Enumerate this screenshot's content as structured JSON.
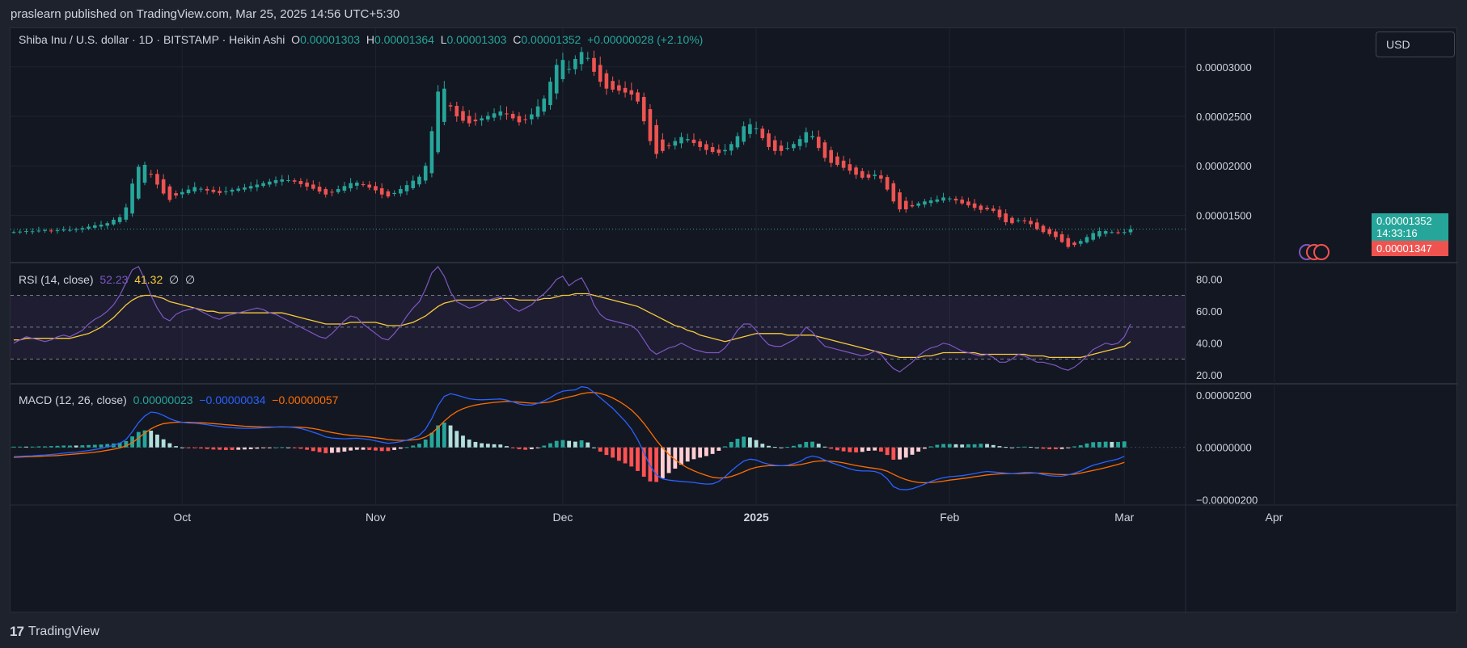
{
  "header": {
    "published_text": "praslearn published on TradingView.com, Mar 25, 2025 14:56 UTC+5:30"
  },
  "legend": {
    "symbol": "Shiba Inu / U.S. dollar · 1D · BITSTAMP · Heikin Ashi",
    "o_label": "O",
    "o_value": "0.00001303",
    "h_label": "H",
    "h_value": "0.00001364",
    "l_label": "L",
    "l_value": "0.00001303",
    "c_label": "C",
    "c_value": "0.00001352",
    "change": "+0.00000028 (+2.10%)"
  },
  "currency": "USD",
  "price_axis": {
    "ticks": [
      "0.00003000",
      "0.00002500",
      "0.00002000",
      "0.00001500"
    ],
    "last_price": "0.00001352",
    "countdown": "14:33:16",
    "low_tag": "0.00001347"
  },
  "rsi": {
    "title": "RSI (14, close)",
    "value_rsi": "52.23",
    "value_ma": "41.32",
    "flag1": "∅",
    "flag2": "∅",
    "ticks": [
      "80.00",
      "60.00",
      "40.00",
      "20.00"
    ]
  },
  "macd": {
    "title": "MACD (12, 26, close)",
    "hist_value": "0.00000023",
    "macd_value": "−0.00000034",
    "signal_value": "−0.00000057",
    "ticks": [
      "0.00000200",
      "0.00000000",
      "−0.00000200"
    ]
  },
  "time_axis": {
    "labels": [
      "Oct",
      "Nov",
      "Dec",
      "2025",
      "Feb",
      "Mar",
      "Apr"
    ]
  },
  "colors": {
    "up": "#26a69a",
    "down": "#ef5350",
    "rsi_line": "#7e57c2",
    "rsi_ma": "#f7cc3b",
    "macd_line": "#2962ff",
    "signal_line": "#ff6d00",
    "hist_up_strong": "#26a69a",
    "hist_up_weak": "#b2dfdb",
    "hist_down_strong": "#ff5252",
    "hist_down_weak": "#ffcdd2"
  },
  "footer": {
    "brand": "TradingView",
    "logo": "17"
  },
  "chart_data": [
    {
      "type": "candlestick",
      "title": "Shiba Inu / U.S. dollar · 1D · BITSTAMP · Heikin Ashi",
      "x_start": "2024-09-04",
      "x_end": "2025-03-25",
      "ylim": [
        1.03e-05,
        3.39e-05
      ],
      "close": [
        1.33e-05,
        1.335e-05,
        1.34e-05,
        1.338e-05,
        1.345e-05,
        1.35e-05,
        1.342e-05,
        1.348e-05,
        1.355e-05,
        1.352e-05,
        1.36e-05,
        1.37e-05,
        1.385e-05,
        1.398e-05,
        1.405e-05,
        1.42e-05,
        1.455e-05,
        1.48e-05,
        1.58e-05,
        1.82e-05,
        1.99e-05,
        2.01e-05,
        1.915e-05,
        1.81e-05,
        1.72e-05,
        1.655e-05,
        1.7e-05,
        1.735e-05,
        1.76e-05,
        1.785e-05,
        1.768e-05,
        1.75e-05,
        1.735e-05,
        1.725e-05,
        1.742e-05,
        1.758e-05,
        1.77e-05,
        1.782e-05,
        1.795e-05,
        1.81e-05,
        1.825e-05,
        1.84e-05,
        1.855e-05,
        1.862e-05,
        1.855e-05,
        1.84e-05,
        1.815e-05,
        1.79e-05,
        1.768e-05,
        1.74e-05,
        1.71e-05,
        1.73e-05,
        1.765e-05,
        1.795e-05,
        1.825e-05,
        1.83e-05,
        1.805e-05,
        1.78e-05,
        1.752e-05,
        1.71e-05,
        1.69e-05,
        1.725e-05,
        1.765e-05,
        1.805e-05,
        1.85e-05,
        1.89e-05,
        2e-05,
        2.35e-05,
        2.75e-05,
        2.78e-05,
        2.6e-05,
        2.5e-05,
        2.455e-05,
        2.43e-05,
        2.45e-05,
        2.48e-05,
        2.505e-05,
        2.53e-05,
        2.55e-05,
        2.52e-05,
        2.48e-05,
        2.44e-05,
        2.47e-05,
        2.52e-05,
        2.6e-05,
        2.68e-05,
        2.85e-05,
        3.02e-05,
        3.07e-05,
        2.98e-05,
        3.08e-05,
        3.15e-05,
        3.09e-05,
        2.95e-05,
        2.85e-05,
        2.78e-05,
        2.77e-05,
        2.76e-05,
        2.74e-05,
        2.72e-05,
        2.65e-05,
        2.45e-05,
        2.25e-05,
        2.12e-05,
        2.15e-05,
        2.2e-05,
        2.25e-05,
        2.29e-05,
        2.27e-05,
        2.23e-05,
        2.19e-05,
        2.16e-05,
        2.14e-05,
        2.13e-05,
        2.16e-05,
        2.22e-05,
        2.3e-05,
        2.4e-05,
        2.42e-05,
        2.38e-05,
        2.28e-05,
        2.19e-05,
        2.15e-05,
        2.15e-05,
        2.18e-05,
        2.22e-05,
        2.27e-05,
        2.34e-05,
        2.3e-05,
        2.18e-05,
        2.08e-05,
        2.03e-05,
        2.01e-05,
        1.98e-05,
        1.95e-05,
        1.91e-05,
        1.88e-05,
        1.88e-05,
        1.91e-05,
        1.87e-05,
        1.76e-05,
        1.64e-05,
        1.56e-05,
        1.56e-05,
        1.59e-05,
        1.62e-05,
        1.64e-05,
        1.65e-05,
        1.66e-05,
        1.68e-05,
        1.67e-05,
        1.65e-05,
        1.62e-05,
        1.6e-05,
        1.575e-05,
        1.555e-05,
        1.56e-05,
        1.545e-05,
        1.48e-05,
        1.43e-05,
        1.42e-05,
        1.45e-05,
        1.44e-05,
        1.41e-05,
        1.36e-05,
        1.33e-05,
        1.31e-05,
        1.28e-05,
        1.23e-05,
        1.18e-05,
        1.2e-05,
        1.24e-05,
        1.28e-05,
        1.32e-05,
        1.34e-05,
        1.34e-05,
        1.33e-05,
        1.325e-05,
        1.33e-05,
        1.36e-05
      ]
    },
    {
      "type": "line",
      "title": "RSI (14, close)",
      "ylim": [
        15,
        90
      ],
      "series": [
        {
          "name": "RSI",
          "values": [
            40,
            42,
            44,
            43,
            42,
            41,
            42,
            44,
            45,
            44,
            46,
            48,
            52,
            55,
            57,
            60,
            64,
            70,
            78,
            86,
            88,
            80,
            70,
            62,
            56,
            54,
            58,
            60,
            61,
            62,
            60,
            58,
            56,
            55,
            57,
            58,
            59,
            60,
            61,
            62,
            61,
            59,
            58,
            56,
            54,
            52,
            50,
            48,
            46,
            44,
            43,
            46,
            50,
            54,
            57,
            56,
            52,
            49,
            46,
            43,
            42,
            46,
            51,
            57,
            62,
            66,
            74,
            84,
            88,
            82,
            72,
            66,
            64,
            62,
            63,
            65,
            67,
            68,
            69,
            66,
            62,
            60,
            62,
            64,
            68,
            71,
            75,
            80,
            82,
            76,
            79,
            81,
            74,
            64,
            58,
            55,
            54,
            53,
            52,
            51,
            48,
            42,
            36,
            33,
            35,
            37,
            38,
            40,
            38,
            36,
            35,
            34,
            34,
            34,
            37,
            42,
            48,
            52,
            52,
            48,
            43,
            39,
            38,
            38,
            40,
            42,
            45,
            50,
            47,
            42,
            38,
            37,
            36,
            35,
            34,
            33,
            32,
            33,
            35,
            33,
            28,
            24,
            22,
            25,
            28,
            32,
            35,
            37,
            38,
            40,
            39,
            37,
            35,
            34,
            33,
            32,
            33,
            31,
            28,
            28,
            30,
            33,
            32,
            30,
            28,
            28,
            27,
            26,
            24,
            23,
            25,
            28,
            32,
            36,
            38,
            40,
            39,
            40,
            44,
            52
          ]
        },
        {
          "name": "RSI MA",
          "values": [
            42,
            42,
            43,
            43,
            43,
            43,
            43,
            43,
            43,
            43,
            44,
            45,
            46,
            48,
            50,
            53,
            56,
            60,
            64,
            67,
            69,
            70,
            70,
            69,
            68,
            66,
            65,
            64,
            63,
            62,
            61,
            60,
            60,
            59,
            59,
            59,
            59,
            59,
            59,
            59,
            59,
            59,
            59,
            59,
            58,
            57,
            56,
            55,
            54,
            53,
            52,
            52,
            52,
            52,
            53,
            53,
            53,
            53,
            53,
            52,
            51,
            51,
            51,
            52,
            53,
            55,
            57,
            60,
            63,
            65,
            66,
            67,
            67,
            67,
            67,
            67,
            67,
            67,
            68,
            68,
            68,
            67,
            67,
            67,
            67,
            68,
            68,
            69,
            70,
            70,
            71,
            71,
            71,
            70,
            69,
            68,
            67,
            66,
            65,
            64,
            63,
            61,
            59,
            57,
            55,
            53,
            51,
            50,
            48,
            47,
            45,
            44,
            43,
            42,
            41,
            42,
            43,
            44,
            45,
            46,
            46,
            46,
            46,
            46,
            45,
            45,
            45,
            45,
            45,
            44,
            43,
            42,
            41,
            40,
            39,
            38,
            37,
            36,
            35,
            34,
            33,
            32,
            31,
            31,
            31,
            31,
            32,
            32,
            33,
            34,
            34,
            34,
            34,
            34,
            34,
            33,
            33,
            33,
            33,
            33,
            33,
            33,
            33,
            32,
            32,
            32,
            31,
            31,
            31,
            31,
            31,
            31,
            32,
            33,
            34,
            35,
            36,
            37,
            38,
            41
          ]
        }
      ]
    },
    {
      "type": "line",
      "title": "MACD (12, 26, close)",
      "ylim": [
        -2.2e-06,
        2.4e-06
      ],
      "series": [
        {
          "name": "MACD",
          "values": [
            -3.5e-07,
            -3.4e-07,
            -3.3e-07,
            -3.2e-07,
            -3e-07,
            -2.9e-07,
            -2.7e-07,
            -2.5e-07,
            -2.2e-07,
            -2e-07,
            -1.8e-07,
            -1.5e-07,
            -1.2e-07,
            -8e-08,
            -4e-08,
            2e-08,
            8e-08,
            1.6e-07,
            3e-07,
            6e-07,
            9.5e-07,
            1.2e-06,
            1.35e-06,
            1.32e-06,
            1.22e-06,
            1.1e-06,
            1.01e-06,
            9.6e-07,
            9.3e-07,
            9.2e-07,
            9e-07,
            8.7e-07,
            8.3e-07,
            8e-07,
            7.7e-07,
            7.5e-07,
            7.4e-07,
            7.3e-07,
            7.3e-07,
            7.4e-07,
            7.5e-07,
            7.6e-07,
            7.8e-07,
            7.9e-07,
            7.8e-07,
            7.6e-07,
            7.2e-07,
            6.6e-07,
            5.8e-07,
            5e-07,
            4e-07,
            3.6e-07,
            3.4e-07,
            3.3e-07,
            3.4e-07,
            3.5e-07,
            3.3e-07,
            3e-07,
            2.5e-07,
            2e-07,
            1.6e-07,
            1.8e-07,
            2.2e-07,
            2.8e-07,
            3.6e-07,
            4.6e-07,
            7e-07,
            1.1e-06,
            1.6e-06,
            1.95e-06,
            2.05e-06,
            2e-06,
            1.93e-06,
            1.86e-06,
            1.83e-06,
            1.82e-06,
            1.83e-06,
            1.84e-06,
            1.85e-06,
            1.81e-06,
            1.74e-06,
            1.66e-06,
            1.62e-06,
            1.62e-06,
            1.68e-06,
            1.78e-06,
            1.9e-06,
            2.05e-06,
            2.15e-06,
            2.18e-06,
            2.2e-06,
            2.32e-06,
            2.28e-06,
            2.1e-06,
            1.9e-06,
            1.7e-06,
            1.5e-06,
            1.25e-06,
            1e-06,
            7e-07,
            3e-07,
            -2e-07,
            -7e-07,
            -1.05e-06,
            -1.2e-06,
            -1.25e-06,
            -1.28e-06,
            -1.3e-06,
            -1.32e-06,
            -1.34e-06,
            -1.38e-06,
            -1.4e-06,
            -1.39e-06,
            -1.3e-06,
            -1.12e-06,
            -9e-07,
            -7e-07,
            -5.2e-07,
            -4.5e-07,
            -4.8e-07,
            -5.8e-07,
            -6.4e-07,
            -6.8e-07,
            -7e-07,
            -6.8e-07,
            -6.2e-07,
            -5.4e-07,
            -4e-07,
            -3.3e-07,
            -3.8e-07,
            -4.8e-07,
            -5.8e-07,
            -6.6e-07,
            -7.4e-07,
            -8.2e-07,
            -8.8e-07,
            -9e-07,
            -9e-07,
            -9.2e-07,
            -1e-06,
            -1.2e-06,
            -1.5e-06,
            -1.6e-06,
            -1.62e-06,
            -1.58e-06,
            -1.5e-06,
            -1.4e-06,
            -1.3e-06,
            -1.22e-06,
            -1.16e-06,
            -1.12e-06,
            -1.1e-06,
            -1.08e-06,
            -1.04e-06,
            -1e-06,
            -9.5e-07,
            -9.2e-07,
            -9.4e-07,
            -9.6e-07,
            -9.8e-07,
            -1e-06,
            -9.8e-07,
            -9.6e-07,
            -9.6e-07,
            -9.8e-07,
            -1.04e-06,
            -1.08e-06,
            -1.1e-06,
            -1.1e-06,
            -1.05e-06,
            -9.8e-07,
            -9e-07,
            -7.8e-07,
            -6.8e-07,
            -6.2e-07,
            -5.5e-07,
            -5e-07,
            -4.4e-07,
            -3.4e-07
          ]
        },
        {
          "name": "Signal",
          "values": [
            -3.8e-07,
            -3.7e-07,
            -3.6e-07,
            -3.5e-07,
            -3.4e-07,
            -3.3e-07,
            -3.2e-07,
            -3.1e-07,
            -2.9e-07,
            -2.7e-07,
            -2.5e-07,
            -2.3e-07,
            -2.1e-07,
            -1.8e-07,
            -1.5e-07,
            -1.1e-07,
            -7e-08,
            -2e-08,
            6e-08,
            1.8e-07,
            3.6e-07,
            5.5e-07,
            7.1e-07,
            8.3e-07,
            9.1e-07,
            9.4e-07,
            9.6e-07,
            9.6e-07,
            9.6e-07,
            9.5e-07,
            9.4e-07,
            9.3e-07,
            9.1e-07,
            8.9e-07,
            8.7e-07,
            8.5e-07,
            8.3e-07,
            8.1e-07,
            8e-07,
            7.9e-07,
            7.8e-07,
            7.8e-07,
            7.8e-07,
            7.8e-07,
            7.8e-07,
            7.8e-07,
            7.7e-07,
            7.5e-07,
            7.2e-07,
            6.8e-07,
            6.2e-07,
            5.7e-07,
            5.3e-07,
            4.9e-07,
            4.6e-07,
            4.4e-07,
            4.2e-07,
            4e-07,
            3.7e-07,
            3.4e-07,
            3e-07,
            2.8e-07,
            2.7e-07,
            2.7e-07,
            2.9e-07,
            3.2e-07,
            4e-07,
            5.4e-07,
            7.6e-07,
            1e-06,
            1.21e-06,
            1.37e-06,
            1.48e-06,
            1.56e-06,
            1.62e-06,
            1.66e-06,
            1.69e-06,
            1.72e-06,
            1.74e-06,
            1.76e-06,
            1.75e-06,
            1.73e-06,
            1.71e-06,
            1.69e-06,
            1.69e-06,
            1.71e-06,
            1.74e-06,
            1.8e-06,
            1.87e-06,
            1.93e-06,
            1.98e-06,
            2.05e-06,
            2.09e-06,
            2.1e-06,
            2.06e-06,
            1.99e-06,
            1.89e-06,
            1.76e-06,
            1.61e-06,
            1.43e-06,
            1.2e-06,
            9.2e-07,
            6e-07,
            2.7e-07,
            -2e-08,
            -2.7e-07,
            -4.7e-07,
            -6.4e-07,
            -7.8e-07,
            -8.9e-07,
            -9.9e-07,
            -1.07e-06,
            -1.14e-06,
            -1.17e-06,
            -1.16e-06,
            -1.11e-06,
            -1.03e-06,
            -9.3e-07,
            -8.3e-07,
            -7.6e-07,
            -7.2e-07,
            -7e-07,
            -7e-07,
            -7e-07,
            -7e-07,
            -6.8e-07,
            -6.6e-07,
            -6.1e-07,
            -5.5e-07,
            -5.2e-07,
            -5.1e-07,
            -5.3e-07,
            -5.5e-07,
            -5.9e-07,
            -6.4e-07,
            -6.9e-07,
            -7.3e-07,
            -7.7e-07,
            -8e-07,
            -8.4e-07,
            -9.1e-07,
            -1.03e-06,
            -1.14e-06,
            -1.23e-06,
            -1.3e-06,
            -1.34e-06,
            -1.35e-06,
            -1.34e-06,
            -1.32e-06,
            -1.29e-06,
            -1.25e-06,
            -1.22e-06,
            -1.19e-06,
            -1.16e-06,
            -1.12e-06,
            -1.09e-06,
            -1.05e-06,
            -1.03e-06,
            -1.01e-06,
            -1e-06,
            -1e-06,
            -1e-06,
            -9.9e-07,
            -9.8e-07,
            -9.8e-07,
            -9.9e-07,
            -1.01e-06,
            -1.03e-06,
            -1.04e-06,
            -1.04e-06,
            -1.02e-06,
            -9.8e-07,
            -9.3e-07,
            -8.8e-07,
            -8.3e-07,
            -7.7e-07,
            -7.1e-07,
            -6.5e-07,
            -5.7e-07
          ]
        }
      ]
    }
  ]
}
